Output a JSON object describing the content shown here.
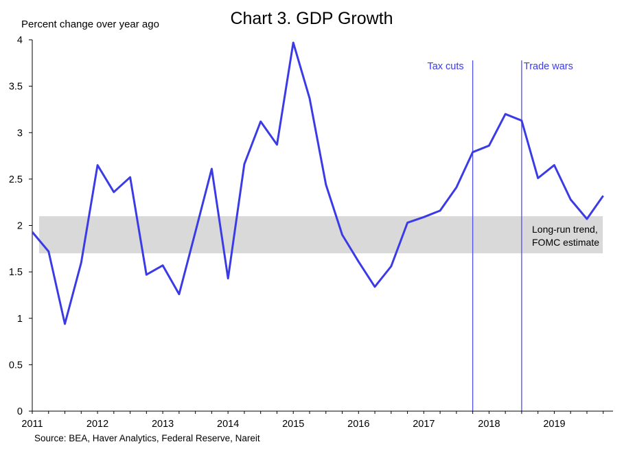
{
  "chart_data": {
    "type": "line",
    "title": "Chart 3. GDP Growth",
    "ylabel": "Percent change over year ago",
    "source": "Source: BEA, Haver Analytics, Federal Reserve, Nareit",
    "ylim": [
      0,
      4
    ],
    "yticks": [
      "0",
      "0.5",
      "1",
      "1.5",
      "2",
      "2.5",
      "3",
      "3.5",
      "4"
    ],
    "xlim": [
      2011,
      2019.9
    ],
    "xticks": [
      "2011",
      "2012",
      "2013",
      "2014",
      "2015",
      "2016",
      "2017",
      "2018",
      "2019"
    ],
    "grid": false,
    "colors": {
      "line": "#3b3be6",
      "event_line": "#4d4de8",
      "band": "#d9d9d9",
      "annotation_text": "#3b3be6"
    },
    "band": {
      "from": 1.7,
      "to": 2.1,
      "label_lines": [
        "Long-run trend,",
        "FOMC estimate"
      ]
    },
    "events": [
      {
        "x": 2017.75,
        "label": "Tax cuts"
      },
      {
        "x": 2018.5,
        "label": "Trade wars"
      }
    ],
    "series": [
      {
        "x": [
          2011,
          2011.25,
          2011.5,
          2011.75,
          2012,
          2012.25,
          2012.5,
          2012.75,
          2013,
          2013.25,
          2013.5,
          2013.75,
          2014,
          2014.25,
          2014.5,
          2014.75,
          2015,
          2015.25,
          2015.5,
          2015.75,
          2016,
          2016.25,
          2016.5,
          2016.75,
          2017,
          2017.25,
          2017.5,
          2017.75,
          2018,
          2018.25,
          2018.5,
          2018.75,
          2019,
          2019.25,
          2019.5,
          2019.75
        ],
        "values": [
          1.93,
          1.72,
          0.94,
          1.6,
          2.65,
          2.36,
          2.52,
          1.47,
          1.57,
          1.26,
          1.93,
          2.61,
          1.43,
          2.66,
          3.12,
          2.87,
          3.97,
          3.37,
          2.44,
          1.9,
          1.61,
          1.34,
          1.56,
          2.03,
          2.09,
          2.16,
          2.41,
          2.79,
          2.86,
          3.2,
          3.13,
          2.51,
          2.65,
          2.28,
          2.07,
          2.32
        ]
      }
    ]
  }
}
